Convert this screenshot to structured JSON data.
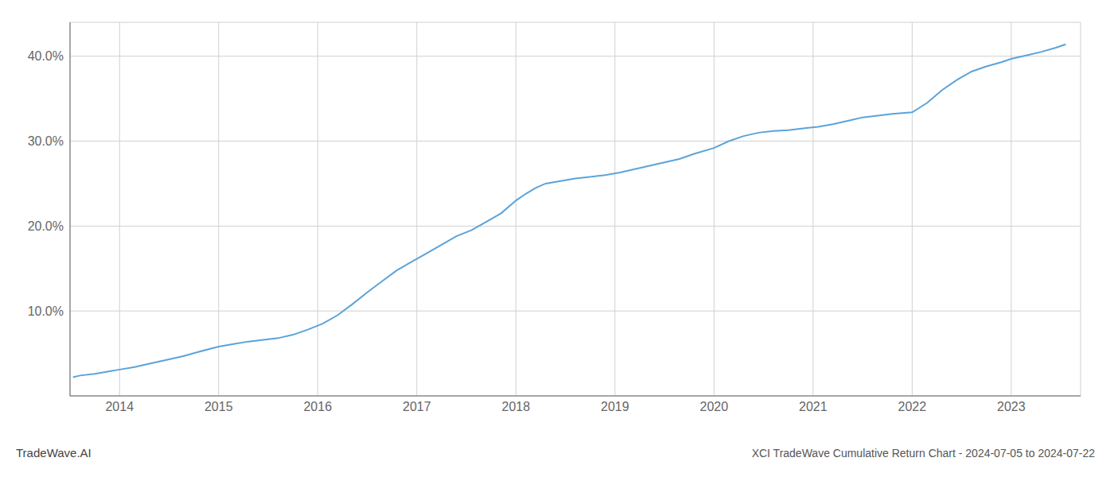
{
  "chart_data": {
    "type": "line",
    "title": "XCI TradeWave Cumulative Return Chart - 2024-07-05 to 2024-07-22",
    "annotations": [
      "TradeWave.AI"
    ],
    "x": [
      2013.53,
      2013.6,
      2013.75,
      2013.9,
      2014.0,
      2014.15,
      2014.3,
      2014.5,
      2014.65,
      2014.8,
      2015.0,
      2015.15,
      2015.3,
      2015.45,
      2015.6,
      2015.75,
      2015.9,
      2016.05,
      2016.2,
      2016.35,
      2016.5,
      2016.65,
      2016.8,
      2016.95,
      2017.1,
      2017.25,
      2017.4,
      2017.55,
      2017.7,
      2017.85,
      2018.0,
      2018.1,
      2018.2,
      2018.3,
      2018.45,
      2018.6,
      2018.75,
      2018.9,
      2019.05,
      2019.2,
      2019.35,
      2019.5,
      2019.65,
      2019.8,
      2020.0,
      2020.15,
      2020.3,
      2020.45,
      2020.6,
      2020.75,
      2020.9,
      2021.05,
      2021.2,
      2021.35,
      2021.5,
      2021.65,
      2021.8,
      2022.0,
      2022.15,
      2022.3,
      2022.45,
      2022.6,
      2022.75,
      2022.9,
      2023.0,
      2023.15,
      2023.3,
      2023.45,
      2023.55
    ],
    "values": [
      2.2,
      2.4,
      2.6,
      2.9,
      3.1,
      3.4,
      3.8,
      4.3,
      4.7,
      5.2,
      5.8,
      6.1,
      6.4,
      6.6,
      6.8,
      7.2,
      7.8,
      8.5,
      9.5,
      10.8,
      12.2,
      13.5,
      14.8,
      15.8,
      16.8,
      17.8,
      18.8,
      19.5,
      20.5,
      21.5,
      23.0,
      23.8,
      24.5,
      25.0,
      25.3,
      25.6,
      25.8,
      26.0,
      26.3,
      26.7,
      27.1,
      27.5,
      27.9,
      28.5,
      29.2,
      30.0,
      30.6,
      31.0,
      31.2,
      31.3,
      31.5,
      31.7,
      32.0,
      32.4,
      32.8,
      33.0,
      33.2,
      33.4,
      34.5,
      36.0,
      37.2,
      38.2,
      38.8,
      39.3,
      39.7,
      40.1,
      40.5,
      41.0,
      41.4
    ],
    "color": "#5ba3d9",
    "xlim": [
      2013.5,
      2023.7
    ],
    "ylim": [
      0,
      44
    ],
    "xticks": [
      2014,
      2015,
      2016,
      2017,
      2018,
      2019,
      2020,
      2021,
      2022,
      2023
    ],
    "yticks": [
      {
        "value": 10.0,
        "label": "10.0%"
      },
      {
        "value": 20.0,
        "label": "20.0%"
      },
      {
        "value": 30.0,
        "label": "30.0%"
      },
      {
        "value": 40.0,
        "label": "40.0%"
      }
    ],
    "grid": true
  }
}
